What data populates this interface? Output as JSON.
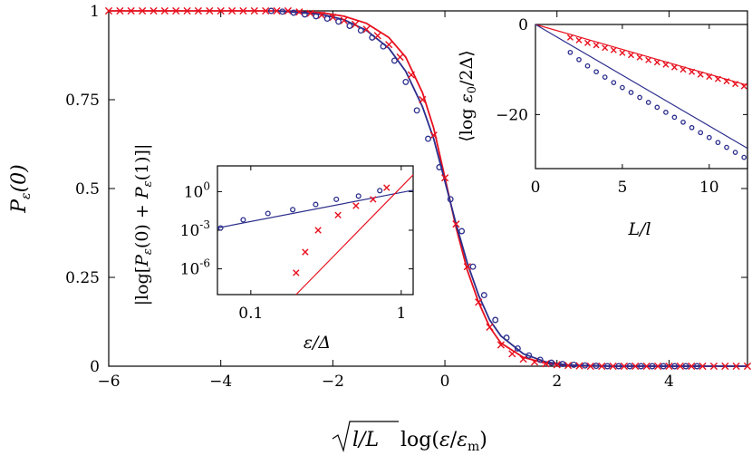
{
  "colors": {
    "red": "#e8101e",
    "blue": "#2b2e8c",
    "axis": "#000000"
  },
  "chart_data": [
    {
      "id": "main",
      "type": "scatter",
      "xlabel": "√(l/L) log(ε/ε_m)",
      "ylabel": "P_ε(0)",
      "xlim": [
        -6,
        5.4
      ],
      "ylim": [
        0,
        1
      ],
      "xticks": [
        {
          "v": -6,
          "label": "−6"
        },
        {
          "v": -4,
          "label": "−4"
        },
        {
          "v": -2,
          "label": "−2"
        },
        {
          "v": 0,
          "label": "0"
        },
        {
          "v": 2,
          "label": "2"
        },
        {
          "v": 4,
          "label": "4"
        }
      ],
      "yticks": [
        {
          "v": 0,
          "label": "0"
        },
        {
          "v": 0.25,
          "label": "0.25"
        },
        {
          "v": 0.5,
          "label": "0.5"
        },
        {
          "v": 0.75,
          "label": "0.75"
        },
        {
          "v": 1,
          "label": "1"
        }
      ],
      "series": [
        {
          "kind": "line",
          "color": "red",
          "points": [
            [
              -6,
              1
            ],
            [
              -3,
              1
            ],
            [
              -2.2,
              0.995
            ],
            [
              -1.8,
              0.985
            ],
            [
              -1.4,
              0.965
            ],
            [
              -1,
              0.925
            ],
            [
              -0.7,
              0.87
            ],
            [
              -0.4,
              0.77
            ],
            [
              -0.2,
              0.67
            ],
            [
              0,
              0.53
            ],
            [
              0.2,
              0.39
            ],
            [
              0.4,
              0.27
            ],
            [
              0.6,
              0.18
            ],
            [
              0.8,
              0.11
            ],
            [
              1,
              0.065
            ],
            [
              1.4,
              0.025
            ],
            [
              1.8,
              0.008
            ],
            [
              2.2,
              0.002
            ],
            [
              3,
              0
            ],
            [
              5.4,
              0
            ]
          ]
        },
        {
          "kind": "line",
          "color": "blue",
          "points": [
            [
              -3,
              1
            ],
            [
              -2.2,
              0.99
            ],
            [
              -1.8,
              0.975
            ],
            [
              -1.4,
              0.945
            ],
            [
              -1,
              0.895
            ],
            [
              -0.7,
              0.83
            ],
            [
              -0.4,
              0.73
            ],
            [
              -0.2,
              0.64
            ],
            [
              0,
              0.52
            ],
            [
              0.2,
              0.4
            ],
            [
              0.4,
              0.29
            ],
            [
              0.6,
              0.2
            ],
            [
              0.8,
              0.13
            ],
            [
              1,
              0.085
            ],
            [
              1.4,
              0.035
            ],
            [
              1.8,
              0.012
            ],
            [
              2.2,
              0.003
            ],
            [
              3,
              0
            ],
            [
              5.4,
              0
            ]
          ]
        },
        {
          "kind": "cross",
          "color": "red",
          "points": [
            [
              -6,
              1
            ],
            [
              -5.8,
              1
            ],
            [
              -5.6,
              1
            ],
            [
              -5.4,
              1
            ],
            [
              -5.2,
              1
            ],
            [
              -5,
              1
            ],
            [
              -4.8,
              1
            ],
            [
              -4.6,
              1
            ],
            [
              -4.4,
              1
            ],
            [
              -4.2,
              1
            ],
            [
              -4,
              1
            ],
            [
              -3.8,
              1
            ],
            [
              -3.6,
              1
            ],
            [
              -3.4,
              1
            ],
            [
              -3.2,
              1
            ],
            [
              -3,
              1
            ],
            [
              -2.8,
              1
            ],
            [
              -2.6,
              0.997
            ],
            [
              -2.4,
              0.993
            ],
            [
              -2.2,
              0.988
            ],
            [
              -2,
              0.982
            ],
            [
              -1.8,
              0.973
            ],
            [
              -1.6,
              0.962
            ],
            [
              -1.4,
              0.948
            ],
            [
              -1.2,
              0.93
            ],
            [
              -1,
              0.905
            ],
            [
              -0.8,
              0.87
            ],
            [
              -0.6,
              0.82
            ],
            [
              -0.4,
              0.75
            ],
            [
              -0.2,
              0.65
            ],
            [
              0,
              0.53
            ],
            [
              0.2,
              0.4
            ],
            [
              0.4,
              0.28
            ],
            [
              0.6,
              0.18
            ],
            [
              0.8,
              0.11
            ],
            [
              1,
              0.06
            ],
            [
              1.2,
              0.035
            ],
            [
              1.4,
              0.02
            ],
            [
              1.6,
              0.012
            ],
            [
              1.8,
              0.007
            ],
            [
              2,
              0.004
            ],
            [
              2.2,
              0.002
            ],
            [
              2.4,
              0.001
            ],
            [
              2.6,
              0
            ],
            [
              2.8,
              0
            ],
            [
              3,
              0
            ],
            [
              3.2,
              0
            ],
            [
              3.4,
              0
            ],
            [
              3.6,
              0
            ],
            [
              3.8,
              0
            ],
            [
              4,
              0
            ],
            [
              4.2,
              0
            ],
            [
              4.4,
              0
            ],
            [
              4.6,
              0
            ],
            [
              4.8,
              0
            ],
            [
              5,
              0
            ],
            [
              5.2,
              0
            ],
            [
              5.4,
              0
            ]
          ]
        },
        {
          "kind": "circle",
          "color": "blue",
          "points": [
            [
              -3.1,
              1
            ],
            [
              -2.9,
              0.998
            ],
            [
              -2.7,
              0.995
            ],
            [
              -2.5,
              0.99
            ],
            [
              -2.3,
              0.985
            ],
            [
              -2.1,
              0.978
            ],
            [
              -1.9,
              0.97
            ],
            [
              -1.7,
              0.958
            ],
            [
              -1.5,
              0.945
            ],
            [
              -1.3,
              0.925
            ],
            [
              -1.1,
              0.9
            ],
            [
              -0.9,
              0.86
            ],
            [
              -0.7,
              0.8
            ],
            [
              -0.5,
              0.72
            ],
            [
              -0.3,
              0.64
            ],
            [
              -0.1,
              0.56
            ],
            [
              0.1,
              0.47
            ],
            [
              0.3,
              0.38
            ],
            [
              0.5,
              0.28
            ],
            [
              0.7,
              0.2
            ],
            [
              0.9,
              0.13
            ],
            [
              1.1,
              0.08
            ],
            [
              1.3,
              0.05
            ],
            [
              1.5,
              0.03
            ],
            [
              1.7,
              0.018
            ],
            [
              1.9,
              0.01
            ],
            [
              2.1,
              0.006
            ],
            [
              2.3,
              0.004
            ],
            [
              2.5,
              0.002
            ],
            [
              2.7,
              0.001
            ],
            [
              2.9,
              0
            ],
            [
              3.1,
              0
            ],
            [
              3.3,
              0
            ],
            [
              3.5,
              0
            ],
            [
              3.7,
              0
            ],
            [
              3.9,
              0
            ],
            [
              4.1,
              0
            ],
            [
              4.3,
              0
            ],
            [
              4.5,
              0
            ]
          ]
        }
      ]
    },
    {
      "id": "inset-left",
      "type": "scatter",
      "xscale": "log",
      "yscale": "log",
      "xlabel": "ε/Δ",
      "ylabel": "|log[P_ε(0) + P_ε(1)]|",
      "xlim": [
        0.06,
        1.2
      ],
      "ylim": [
        1e-08,
        100.0
      ],
      "xticks": [
        {
          "v": 0.1,
          "label": "0.1"
        },
        {
          "v": 1,
          "label": "1"
        }
      ],
      "yticks": [
        {
          "v": 1e-06,
          "label": "10^-6"
        },
        {
          "v": 0.001,
          "label": "10^-3"
        },
        {
          "v": 1,
          "label": "10^0"
        }
      ],
      "series": [
        {
          "kind": "line",
          "color": "blue",
          "points": [
            [
              0.06,
              0.0015
            ],
            [
              1.2,
              1.3
            ]
          ]
        },
        {
          "kind": "line",
          "color": "red",
          "points": [
            [
              0.2,
              1e-08
            ],
            [
              1.2,
              20
            ]
          ]
        },
        {
          "kind": "circle",
          "color": "blue",
          "points": [
            [
              0.063,
              0.0015
            ],
            [
              0.089,
              0.0065
            ],
            [
              0.13,
              0.02
            ],
            [
              0.19,
              0.04
            ],
            [
              0.27,
              0.1
            ],
            [
              0.37,
              0.25
            ],
            [
              0.52,
              0.45
            ],
            [
              0.72,
              1.2
            ]
          ]
        },
        {
          "kind": "cross",
          "color": "red",
          "points": [
            [
              0.2,
              5e-07
            ],
            [
              0.23,
              2e-05
            ],
            [
              0.28,
              0.001
            ],
            [
              0.38,
              0.015
            ],
            [
              0.5,
              0.08
            ],
            [
              0.65,
              0.25
            ],
            [
              0.8,
              2
            ]
          ]
        }
      ]
    },
    {
      "id": "inset-right",
      "type": "scatter",
      "xlabel": "L/l",
      "ylabel": "⟨log ε0/2Δ⟩",
      "xlim": [
        0,
        12.2
      ],
      "ylim": [
        -32,
        0
      ],
      "xticks": [
        {
          "v": 0,
          "label": "0"
        },
        {
          "v": 5,
          "label": "5"
        },
        {
          "v": 10,
          "label": "10"
        }
      ],
      "yticks": [
        {
          "v": 0,
          "label": "0"
        },
        {
          "v": -20,
          "label": "−20"
        }
      ],
      "series": [
        {
          "kind": "line",
          "color": "red",
          "points": [
            [
              0,
              0
            ],
            [
              12.2,
              -13.5
            ]
          ]
        },
        {
          "kind": "line",
          "color": "blue",
          "points": [
            [
              0,
              0
            ],
            [
              12.2,
              -27.5
            ]
          ]
        },
        {
          "kind": "cross",
          "color": "red",
          "points": [
            [
              2.0,
              -2.9
            ],
            [
              2.5,
              -3.5
            ],
            [
              3.0,
              -4.1
            ],
            [
              3.5,
              -4.6
            ],
            [
              4.0,
              -5.2
            ],
            [
              4.5,
              -5.7
            ],
            [
              5.0,
              -6.3
            ],
            [
              5.5,
              -6.8
            ],
            [
              6.0,
              -7.3
            ],
            [
              6.5,
              -7.9
            ],
            [
              7.0,
              -8.4
            ],
            [
              7.5,
              -8.9
            ],
            [
              8.0,
              -9.5
            ],
            [
              8.5,
              -10.0
            ],
            [
              9.0,
              -10.5
            ],
            [
              9.5,
              -11.1
            ],
            [
              10.0,
              -11.6
            ],
            [
              10.5,
              -12.1
            ],
            [
              11.0,
              -12.6
            ],
            [
              11.5,
              -13.2
            ],
            [
              12.0,
              -13.7
            ]
          ]
        },
        {
          "kind": "circle",
          "color": "blue",
          "points": [
            [
              2.0,
              -6.2
            ],
            [
              2.5,
              -7.8
            ],
            [
              3.0,
              -9.2
            ],
            [
              3.5,
              -10.5
            ],
            [
              4.0,
              -11.7
            ],
            [
              4.5,
              -12.9
            ],
            [
              5.0,
              -14.0
            ],
            [
              5.5,
              -15.1
            ],
            [
              6.0,
              -16.2
            ],
            [
              6.5,
              -17.3
            ],
            [
              7.0,
              -18.4
            ],
            [
              7.5,
              -19.5
            ],
            [
              8.0,
              -20.6
            ],
            [
              8.5,
              -21.7
            ],
            [
              9.0,
              -22.9
            ],
            [
              9.5,
              -24.0
            ],
            [
              10.0,
              -25.1
            ],
            [
              10.5,
              -26.2
            ],
            [
              11.0,
              -27.3
            ],
            [
              11.5,
              -28.4
            ],
            [
              12.0,
              -29.5
            ]
          ]
        }
      ]
    }
  ]
}
